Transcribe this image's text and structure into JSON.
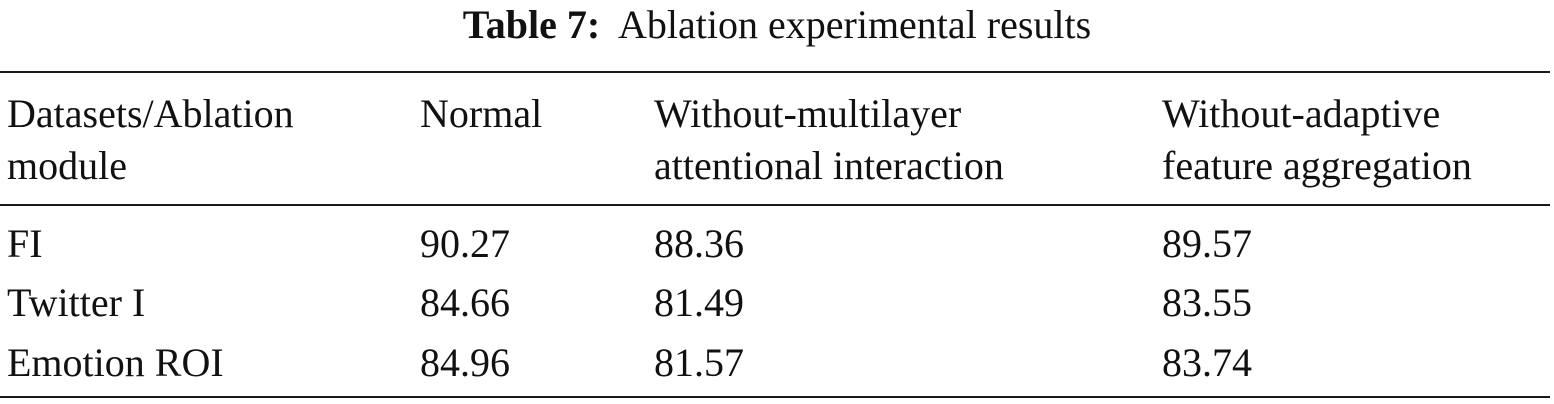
{
  "caption": {
    "label": "Table 7:",
    "text": "Ablation experimental results"
  },
  "table": {
    "headers": [
      {
        "line1": "Datasets/Ablation",
        "line2": "module"
      },
      {
        "line1": "Normal",
        "line2": ""
      },
      {
        "line1": "Without-multilayer",
        "line2": "attentional interaction"
      },
      {
        "line1": "Without-adaptive",
        "line2": "feature aggregation"
      }
    ],
    "rows": [
      [
        "FI",
        "90.27",
        "88.36",
        "89.57"
      ],
      [
        "Twitter I",
        "84.66",
        "81.49",
        "83.55"
      ],
      [
        "Emotion ROI",
        "84.96",
        "81.57",
        "83.74"
      ]
    ]
  }
}
